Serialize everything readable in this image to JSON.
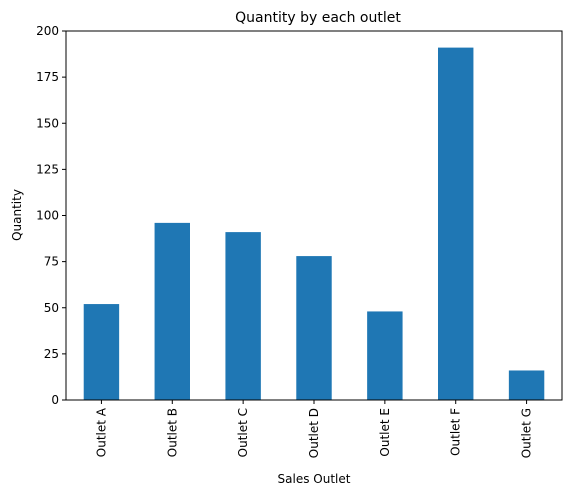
{
  "chart_data": {
    "type": "bar",
    "title": "Quantity by each outlet",
    "xlabel": "Sales Outlet",
    "ylabel": "Quantity",
    "categories": [
      "Outlet A",
      "Outlet B",
      "Outlet C",
      "Outlet D",
      "Outlet E",
      "Outlet F",
      "Outlet G"
    ],
    "values": [
      52,
      96,
      91,
      78,
      48,
      191,
      16
    ],
    "ylim": [
      0,
      200
    ],
    "yticks": [
      0,
      25,
      50,
      75,
      100,
      125,
      150,
      175,
      200
    ],
    "ytick_labels": [
      "0",
      "25",
      "50",
      "75",
      "100",
      "125",
      "150",
      "175",
      "200"
    ],
    "bar_color": "#1f77b4",
    "grid": false,
    "legend": false
  }
}
